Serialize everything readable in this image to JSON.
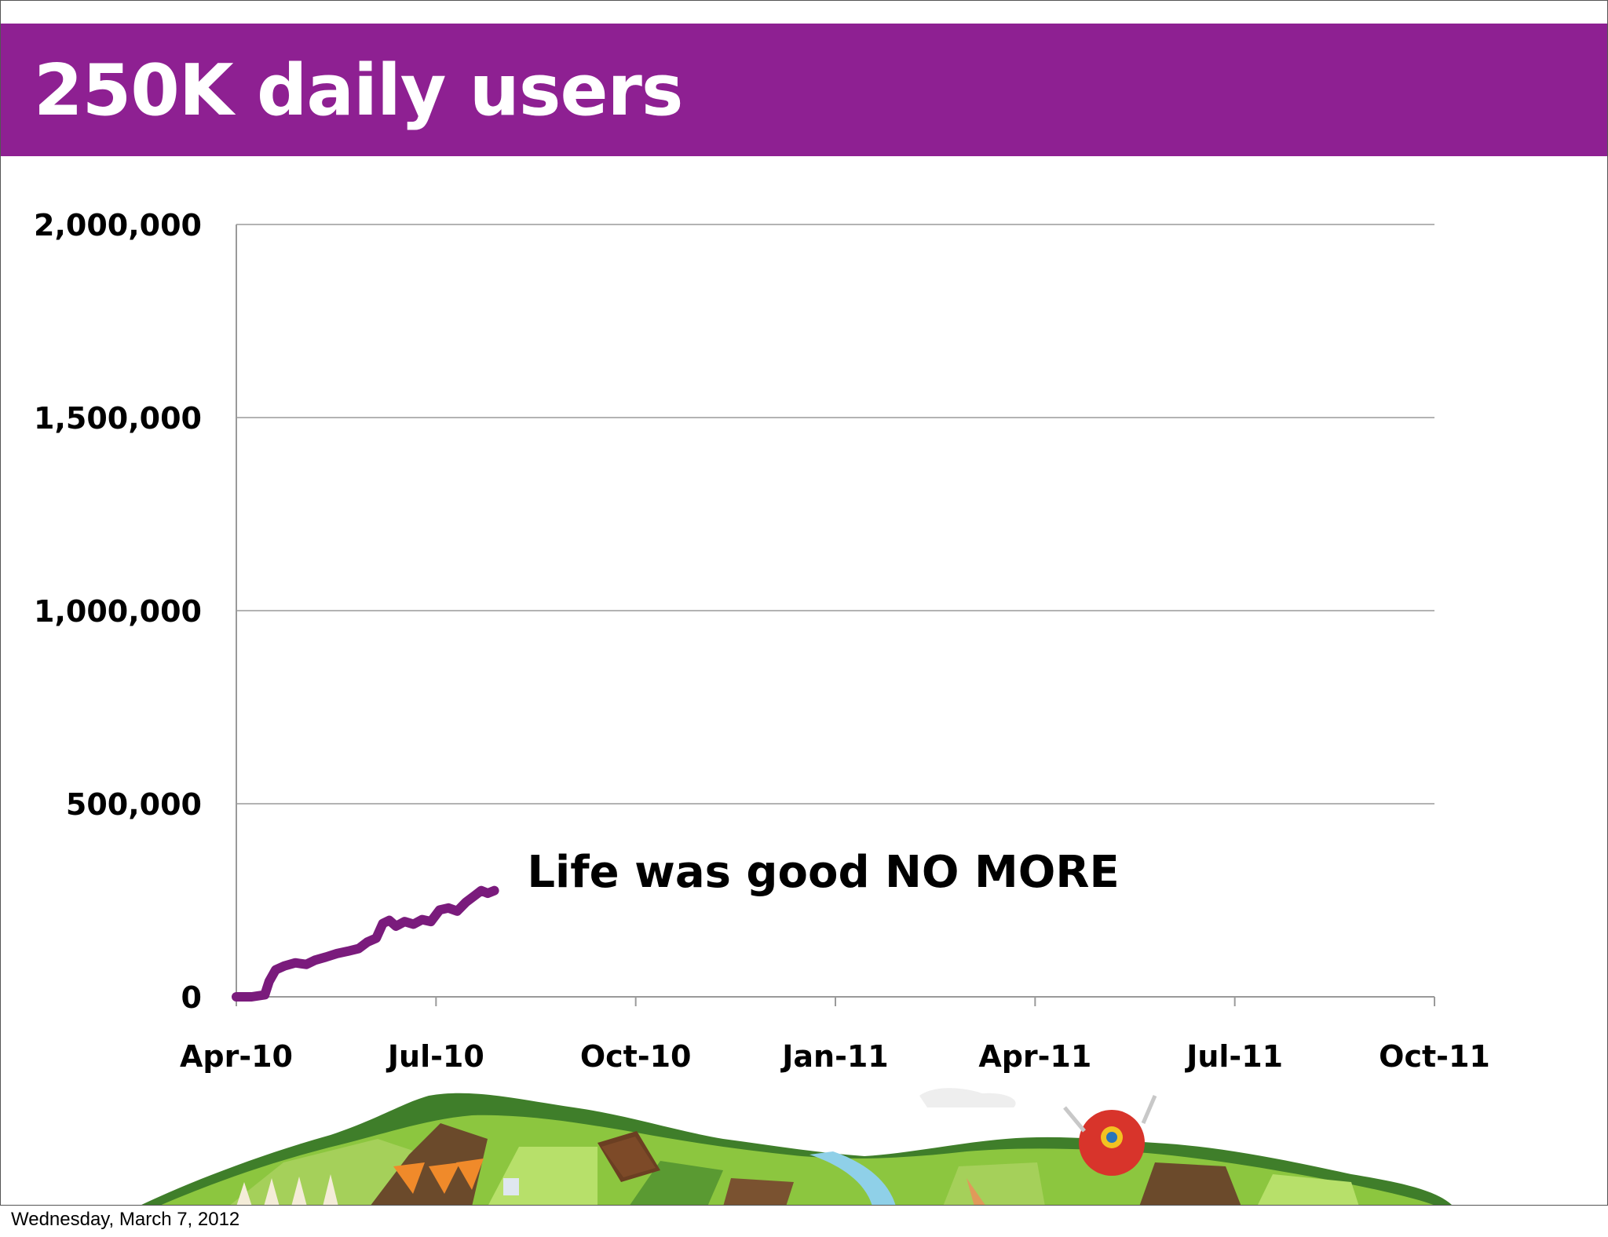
{
  "slide": {
    "title": "250K daily users",
    "footer_date": "Wednesday, March 7, 2012",
    "accent_color": "#8e2092",
    "decoration": "candy-landscape-illustration"
  },
  "chart_data": {
    "type": "line",
    "title": "",
    "xlabel": "",
    "ylabel": "",
    "x_ticks": [
      "Apr-10",
      "Jul-10",
      "Oct-10",
      "Jan-11",
      "Apr-11",
      "Jul-11",
      "Oct-11"
    ],
    "y_ticks": [
      "0",
      "500,000",
      "1,000,000",
      "1,500,000",
      "2,000,000"
    ],
    "xlim": [
      "2010-04-01",
      "2011-10-01"
    ],
    "ylim": [
      0,
      2000000
    ],
    "grid": "horizontal",
    "legend": "none",
    "series": [
      {
        "color": "#7a1b7c",
        "points": [
          [
            "2010-04-01",
            0
          ],
          [
            "2010-04-08",
            0
          ],
          [
            "2010-04-14",
            5000
          ],
          [
            "2010-04-16",
            40000
          ],
          [
            "2010-04-19",
            70000
          ],
          [
            "2010-04-23",
            80000
          ],
          [
            "2010-04-28",
            88000
          ],
          [
            "2010-05-03",
            84000
          ],
          [
            "2010-05-07",
            95000
          ],
          [
            "2010-05-12",
            103000
          ],
          [
            "2010-05-17",
            112000
          ],
          [
            "2010-05-22",
            118000
          ],
          [
            "2010-05-27",
            125000
          ],
          [
            "2010-05-31",
            142000
          ],
          [
            "2010-06-04",
            152000
          ],
          [
            "2010-06-07",
            190000
          ],
          [
            "2010-06-10",
            198000
          ],
          [
            "2010-06-13",
            183000
          ],
          [
            "2010-06-17",
            195000
          ],
          [
            "2010-06-21",
            188000
          ],
          [
            "2010-06-25",
            200000
          ],
          [
            "2010-06-29",
            195000
          ],
          [
            "2010-07-03",
            225000
          ],
          [
            "2010-07-07",
            230000
          ],
          [
            "2010-07-11",
            222000
          ],
          [
            "2010-07-15",
            245000
          ],
          [
            "2010-07-19",
            262000
          ],
          [
            "2010-07-22",
            275000
          ],
          [
            "2010-07-25",
            268000
          ],
          [
            "2010-07-28",
            275000
          ]
        ]
      }
    ],
    "annotations": [
      {
        "text": "Life was good NO MORE",
        "x": "2010-08-12",
        "y": 325000
      }
    ]
  }
}
